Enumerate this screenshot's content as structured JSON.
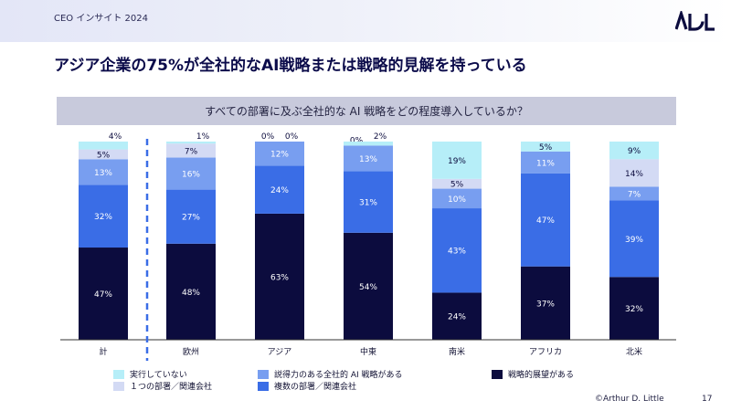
{
  "header": {
    "top_label": "CEO インサイト 2024"
  },
  "title": "アジア企業の75%が全社的なAI戦略または戦略的見解を持っている",
  "question": "すべての部署に及ぶ全社的な AI 戦略をどの程度導入しているか？",
  "colors": {
    "strategic_view": "#0c0c3e",
    "multiple_depts": "#3a6de6",
    "convincing_strategy": "#789ef0",
    "one_dept": "#d3daf4",
    "not_implemented": "#b6eef8"
  },
  "chart_data": {
    "type": "bar",
    "stacked": true,
    "categories": [
      "計",
      "欧州",
      "アジア",
      "中東",
      "南米",
      "アフリカ",
      "北米"
    ],
    "series": [
      {
        "name": "戦略的展望がある",
        "color": "#0c0c3e",
        "label_color": "#ffffff",
        "values": [
          47,
          48,
          63,
          54,
          24,
          37,
          32
        ]
      },
      {
        "name": "複数の部署／関連会社",
        "color": "#3a6de6",
        "label_color": "#ffffff",
        "values": [
          32,
          27,
          24,
          31,
          43,
          47,
          39
        ]
      },
      {
        "name": "説得力のある全社的 AI 戦略がある",
        "color": "#789ef0",
        "label_color": "#ffffff",
        "values": [
          13,
          16,
          12,
          13,
          10,
          11,
          7
        ]
      },
      {
        "name": "１つの部署／関連会社",
        "color": "#d3daf4",
        "label_color": "#0c0c3e",
        "values": [
          5,
          7,
          0,
          0,
          5,
          0,
          14
        ]
      },
      {
        "name": "実行していない",
        "color": "#b6eef8",
        "label_color": "#0c0c3e",
        "values": [
          4,
          1,
          0,
          2,
          19,
          5,
          9
        ]
      }
    ],
    "value_suffix": "%",
    "ylim": [
      0,
      100
    ],
    "grid": false,
    "legend_position": "bottom"
  },
  "footer": {
    "copyright": "©Arthur D. Little",
    "page": "17"
  }
}
